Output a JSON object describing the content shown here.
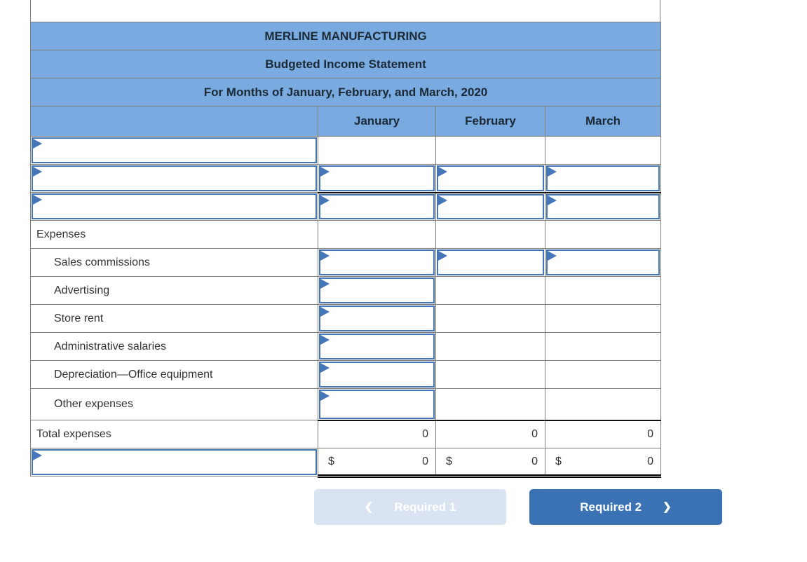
{
  "worksheet": {
    "title_rows": [
      "MERLINE MANUFACTURING",
      "Budgeted Income Statement",
      "For Months of January, February, and March, 2020"
    ],
    "columns": [
      "January",
      "February",
      "March"
    ],
    "rows": [
      {
        "id": "blank-line-1",
        "label": {
          "type": "input"
        },
        "cells": [
          {
            "type": "empty"
          },
          {
            "type": "empty"
          },
          {
            "type": "empty"
          }
        ]
      },
      {
        "id": "blank-line-2",
        "label": {
          "type": "input"
        },
        "cells": [
          {
            "type": "input"
          },
          {
            "type": "input"
          },
          {
            "type": "input"
          }
        ]
      },
      {
        "id": "blank-line-3",
        "label": {
          "type": "input"
        },
        "rule_top": true,
        "cells": [
          {
            "type": "input"
          },
          {
            "type": "input"
          },
          {
            "type": "input"
          }
        ]
      },
      {
        "id": "expenses-heading",
        "label": {
          "type": "text",
          "text": "Expenses",
          "indent": 0
        },
        "cells": [
          {
            "type": "empty"
          },
          {
            "type": "empty"
          },
          {
            "type": "empty"
          }
        ]
      },
      {
        "id": "sales-commissions",
        "label": {
          "type": "text",
          "text": "Sales commissions",
          "indent": 1
        },
        "cells": [
          {
            "type": "input"
          },
          {
            "type": "input"
          },
          {
            "type": "input"
          }
        ]
      },
      {
        "id": "advertising",
        "label": {
          "type": "text",
          "text": "Advertising",
          "indent": 1
        },
        "cells": [
          {
            "type": "input"
          },
          {
            "type": "empty"
          },
          {
            "type": "empty"
          }
        ]
      },
      {
        "id": "store-rent",
        "label": {
          "type": "text",
          "text": "Store rent",
          "indent": 1
        },
        "cells": [
          {
            "type": "input"
          },
          {
            "type": "empty"
          },
          {
            "type": "empty"
          }
        ]
      },
      {
        "id": "administrative-salaries",
        "label": {
          "type": "text",
          "text": "Administrative salaries",
          "indent": 1
        },
        "cells": [
          {
            "type": "input"
          },
          {
            "type": "empty"
          },
          {
            "type": "empty"
          }
        ]
      },
      {
        "id": "depreciation-office-equipment",
        "label": {
          "type": "text",
          "text": "Depreciation—Office equipment",
          "indent": 1
        },
        "cells": [
          {
            "type": "input"
          },
          {
            "type": "empty"
          },
          {
            "type": "empty"
          }
        ]
      },
      {
        "id": "other-expenses",
        "label": {
          "type": "text",
          "text": "Other expenses",
          "indent": 1
        },
        "cells": [
          {
            "type": "input"
          },
          {
            "type": "empty"
          },
          {
            "type": "empty"
          }
        ]
      },
      {
        "id": "total-expenses",
        "label": {
          "type": "text",
          "text": "Total expenses",
          "indent": 0
        },
        "rule_top": true,
        "cells": [
          {
            "type": "value",
            "value": "0"
          },
          {
            "type": "value",
            "value": "0"
          },
          {
            "type": "value",
            "value": "0"
          }
        ]
      },
      {
        "id": "bottom-line",
        "label": {
          "type": "input"
        },
        "double_bottom": true,
        "cells": [
          {
            "type": "money",
            "currency": "$",
            "value": "0"
          },
          {
            "type": "money",
            "currency": "$",
            "value": "0"
          },
          {
            "type": "money",
            "currency": "$",
            "value": "0"
          }
        ]
      }
    ]
  },
  "buttons": {
    "required1": {
      "label": "Required 1",
      "chevron": "❮"
    },
    "required2": {
      "label": "Required 2",
      "chevron": "❯"
    }
  },
  "colors": {
    "header_blue": "#79aae0",
    "input_border": "#4576b9",
    "grid": "#7f7f7f",
    "button_primary": "#3a72b4",
    "button_disabled": "#d9e3f2"
  }
}
